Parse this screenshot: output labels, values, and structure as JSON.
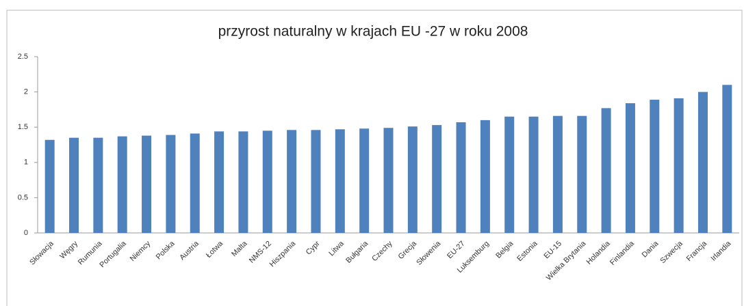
{
  "chart_data": {
    "type": "bar",
    "title": "przyrost naturalny w krajach EU -27 w roku 2008",
    "categories": [
      "Słowacja",
      "Węgry",
      "Rumunia",
      "Portugalia",
      "Niemcy",
      "Polska",
      "Austria",
      "Łotwa",
      "Malta",
      "NMS-12",
      "Hiszpania",
      "Cypr",
      "Litwa",
      "Bułgaria",
      "Czechy",
      "Grecja",
      "Słowenia",
      "EU-27",
      "Luksemburg",
      "Belgia",
      "Estonia",
      "EU-15",
      "Wielka Brytania",
      "Holandia",
      "Finlandia",
      "Dania",
      "Szwecja",
      "Francja",
      "Irlandia"
    ],
    "values": [
      1.32,
      1.35,
      1.35,
      1.37,
      1.38,
      1.39,
      1.41,
      1.44,
      1.44,
      1.45,
      1.46,
      1.46,
      1.47,
      1.48,
      1.49,
      1.51,
      1.53,
      1.57,
      1.6,
      1.65,
      1.65,
      1.66,
      1.66,
      1.77,
      1.84,
      1.89,
      1.91,
      2.0,
      2.1
    ],
    "color": "#4f81bd",
    "ylim": [
      0,
      2.5
    ],
    "yticks": [
      0,
      0.5,
      1,
      1.5,
      2,
      2.5
    ],
    "grid": false
  }
}
